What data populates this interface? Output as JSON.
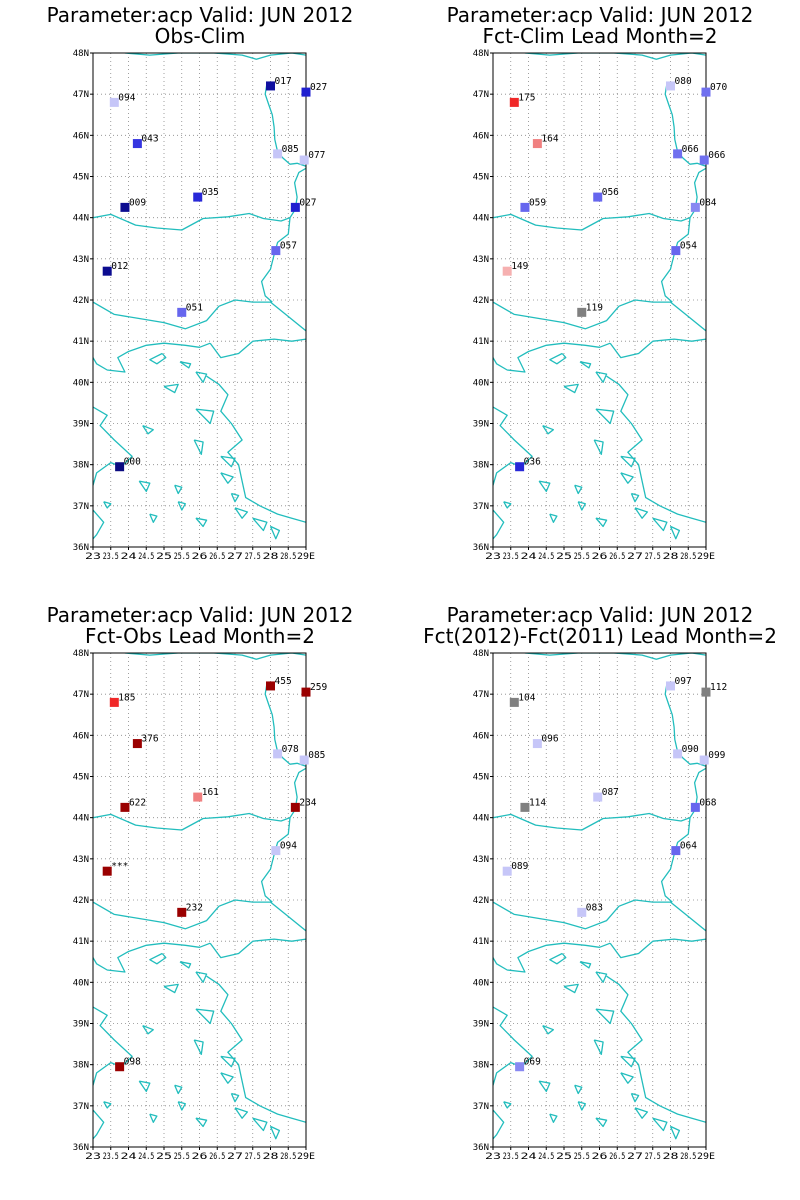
{
  "chart_data": [
    {
      "type": "scatter",
      "title": "Parameter:acp Valid: JUN 2012",
      "subtitle": "Obs-Clim",
      "xlim": [
        23,
        29
      ],
      "ylim": [
        36,
        48
      ],
      "x_tick_labels": [
        "23",
        "23.5",
        "24",
        "24.5",
        "25",
        "25.5",
        "26",
        "26.5",
        "27",
        "27.5",
        "28",
        "28.5",
        "29E"
      ],
      "y_tick_labels": [
        "36N",
        "37N",
        "38N",
        "39N",
        "40N",
        "41N",
        "42N",
        "43N",
        "44N",
        "45N",
        "46N",
        "47N",
        "48N"
      ],
      "grid": true,
      "points": [
        {
          "lon": 23.6,
          "lat": 46.8,
          "label": "094",
          "color": "#c6c6f8"
        },
        {
          "lon": 28.0,
          "lat": 47.2,
          "label": "017",
          "color": "#1010a0"
        },
        {
          "lon": 29.0,
          "lat": 47.05,
          "label": "027",
          "color": "#2020d0"
        },
        {
          "lon": 24.25,
          "lat": 45.8,
          "label": "043",
          "color": "#3535e0"
        },
        {
          "lon": 28.2,
          "lat": 45.55,
          "label": "085",
          "color": "#c6c6f8"
        },
        {
          "lon": 28.95,
          "lat": 45.4,
          "label": "077",
          "color": "#c6c6f8"
        },
        {
          "lon": 25.95,
          "lat": 44.5,
          "label": "035",
          "color": "#2828d8"
        },
        {
          "lon": 23.9,
          "lat": 44.25,
          "label": "009",
          "color": "#0c0c90"
        },
        {
          "lon": 28.7,
          "lat": 44.25,
          "label": "027",
          "color": "#2020d0"
        },
        {
          "lon": 28.15,
          "lat": 43.2,
          "label": "057",
          "color": "#6666ee"
        },
        {
          "lon": 23.4,
          "lat": 42.7,
          "label": "012",
          "color": "#0c0c90"
        },
        {
          "lon": 25.5,
          "lat": 41.7,
          "label": "051",
          "color": "#6666ee"
        },
        {
          "lon": 23.75,
          "lat": 37.95,
          "label": "000",
          "color": "#0a0a80"
        }
      ]
    },
    {
      "type": "scatter",
      "title": "Parameter:acp Valid: JUN 2012",
      "subtitle": "Fct-Clim Lead Month=2",
      "xlim": [
        23,
        29
      ],
      "ylim": [
        36,
        48
      ],
      "x_tick_labels": [
        "23",
        "23.5",
        "24",
        "24.5",
        "25",
        "25.5",
        "26",
        "26.5",
        "27",
        "27.5",
        "28",
        "28.5",
        "29E"
      ],
      "y_tick_labels": [
        "36N",
        "37N",
        "38N",
        "39N",
        "40N",
        "41N",
        "42N",
        "43N",
        "44N",
        "45N",
        "46N",
        "47N",
        "48N"
      ],
      "grid": true,
      "points": [
        {
          "lon": 23.6,
          "lat": 46.8,
          "label": "175",
          "color": "#f02828"
        },
        {
          "lon": 28.0,
          "lat": 47.2,
          "label": "080",
          "color": "#c6c6f8"
        },
        {
          "lon": 29.0,
          "lat": 47.05,
          "label": "070",
          "color": "#7070ef"
        },
        {
          "lon": 24.25,
          "lat": 45.8,
          "label": "164",
          "color": "#f08080"
        },
        {
          "lon": 28.2,
          "lat": 45.55,
          "label": "066",
          "color": "#7070ef"
        },
        {
          "lon": 28.95,
          "lat": 45.4,
          "label": "066",
          "color": "#7070ef"
        },
        {
          "lon": 25.95,
          "lat": 44.5,
          "label": "056",
          "color": "#6666ee"
        },
        {
          "lon": 23.9,
          "lat": 44.25,
          "label": "059",
          "color": "#6666ee"
        },
        {
          "lon": 28.7,
          "lat": 44.25,
          "label": "084",
          "color": "#8888f2"
        },
        {
          "lon": 28.15,
          "lat": 43.2,
          "label": "054",
          "color": "#6666ee"
        },
        {
          "lon": 23.4,
          "lat": 42.7,
          "label": "149",
          "color": "#f6b0b0"
        },
        {
          "lon": 25.5,
          "lat": 41.7,
          "label": "119",
          "color": "#808080"
        },
        {
          "lon": 23.75,
          "lat": 37.95,
          "label": "036",
          "color": "#2828d8"
        }
      ]
    },
    {
      "type": "scatter",
      "title": "Parameter:acp Valid: JUN 2012",
      "subtitle": "Fct-Obs Lead Month=2",
      "xlim": [
        23,
        29
      ],
      "ylim": [
        36,
        48
      ],
      "x_tick_labels": [
        "23",
        "23.5",
        "24",
        "24.5",
        "25",
        "25.5",
        "26",
        "26.5",
        "27",
        "27.5",
        "28",
        "28.5",
        "29E"
      ],
      "y_tick_labels": [
        "36N",
        "37N",
        "38N",
        "39N",
        "40N",
        "41N",
        "42N",
        "43N",
        "44N",
        "45N",
        "46N",
        "47N",
        "48N"
      ],
      "grid": true,
      "points": [
        {
          "lon": 23.6,
          "lat": 46.8,
          "label": "185",
          "color": "#f02828"
        },
        {
          "lon": 28.0,
          "lat": 47.2,
          "label": "455",
          "color": "#9a0000"
        },
        {
          "lon": 29.0,
          "lat": 47.05,
          "label": "259",
          "color": "#9a0000"
        },
        {
          "lon": 24.25,
          "lat": 45.8,
          "label": "376",
          "color": "#9a0000"
        },
        {
          "lon": 28.2,
          "lat": 45.55,
          "label": "078",
          "color": "#c6c6f8"
        },
        {
          "lon": 28.95,
          "lat": 45.4,
          "label": "085",
          "color": "#c6c6f8"
        },
        {
          "lon": 25.95,
          "lat": 44.5,
          "label": "161",
          "color": "#f08080"
        },
        {
          "lon": 23.9,
          "lat": 44.25,
          "label": "622",
          "color": "#9a0000"
        },
        {
          "lon": 28.7,
          "lat": 44.25,
          "label": "234",
          "color": "#9a0000"
        },
        {
          "lon": 28.15,
          "lat": 43.2,
          "label": "094",
          "color": "#c6c6f8"
        },
        {
          "lon": 23.4,
          "lat": 42.7,
          "label": "***",
          "color": "#9a0000"
        },
        {
          "lon": 25.5,
          "lat": 41.7,
          "label": "232",
          "color": "#9a0000"
        },
        {
          "lon": 23.75,
          "lat": 37.95,
          "label": "098",
          "color": "#9a0000"
        }
      ]
    },
    {
      "type": "scatter",
      "title": "Parameter:acp Valid: JUN 2012",
      "subtitle": "Fct(2012)-Fct(2011) Lead Month=2",
      "xlim": [
        23,
        29
      ],
      "ylim": [
        36,
        48
      ],
      "x_tick_labels": [
        "23",
        "23.5",
        "24",
        "24.5",
        "25",
        "25.5",
        "26",
        "26.5",
        "27",
        "27.5",
        "28",
        "28.5",
        "29E"
      ],
      "y_tick_labels": [
        "36N",
        "37N",
        "38N",
        "39N",
        "40N",
        "41N",
        "42N",
        "43N",
        "44N",
        "45N",
        "46N",
        "47N",
        "48N"
      ],
      "grid": true,
      "points": [
        {
          "lon": 23.6,
          "lat": 46.8,
          "label": "104",
          "color": "#808080"
        },
        {
          "lon": 28.0,
          "lat": 47.2,
          "label": "097",
          "color": "#c6c6f8"
        },
        {
          "lon": 29.0,
          "lat": 47.05,
          "label": "112",
          "color": "#808080"
        },
        {
          "lon": 24.25,
          "lat": 45.8,
          "label": "096",
          "color": "#c6c6f8"
        },
        {
          "lon": 28.2,
          "lat": 45.55,
          "label": "090",
          "color": "#c6c6f8"
        },
        {
          "lon": 28.95,
          "lat": 45.4,
          "label": "099",
          "color": "#c6c6f8"
        },
        {
          "lon": 25.95,
          "lat": 44.5,
          "label": "087",
          "color": "#c6c6f8"
        },
        {
          "lon": 23.9,
          "lat": 44.25,
          "label": "114",
          "color": "#808080"
        },
        {
          "lon": 28.7,
          "lat": 44.25,
          "label": "068",
          "color": "#6666ee"
        },
        {
          "lon": 28.15,
          "lat": 43.2,
          "label": "064",
          "color": "#6666ee"
        },
        {
          "lon": 23.4,
          "lat": 42.7,
          "label": "089",
          "color": "#c6c6f8"
        },
        {
          "lon": 25.5,
          "lat": 41.7,
          "label": "083",
          "color": "#c6c6f8"
        },
        {
          "lon": 23.75,
          "lat": 37.95,
          "label": "069",
          "color": "#8888f2"
        }
      ]
    }
  ],
  "coastline_color": "#22bdbd"
}
